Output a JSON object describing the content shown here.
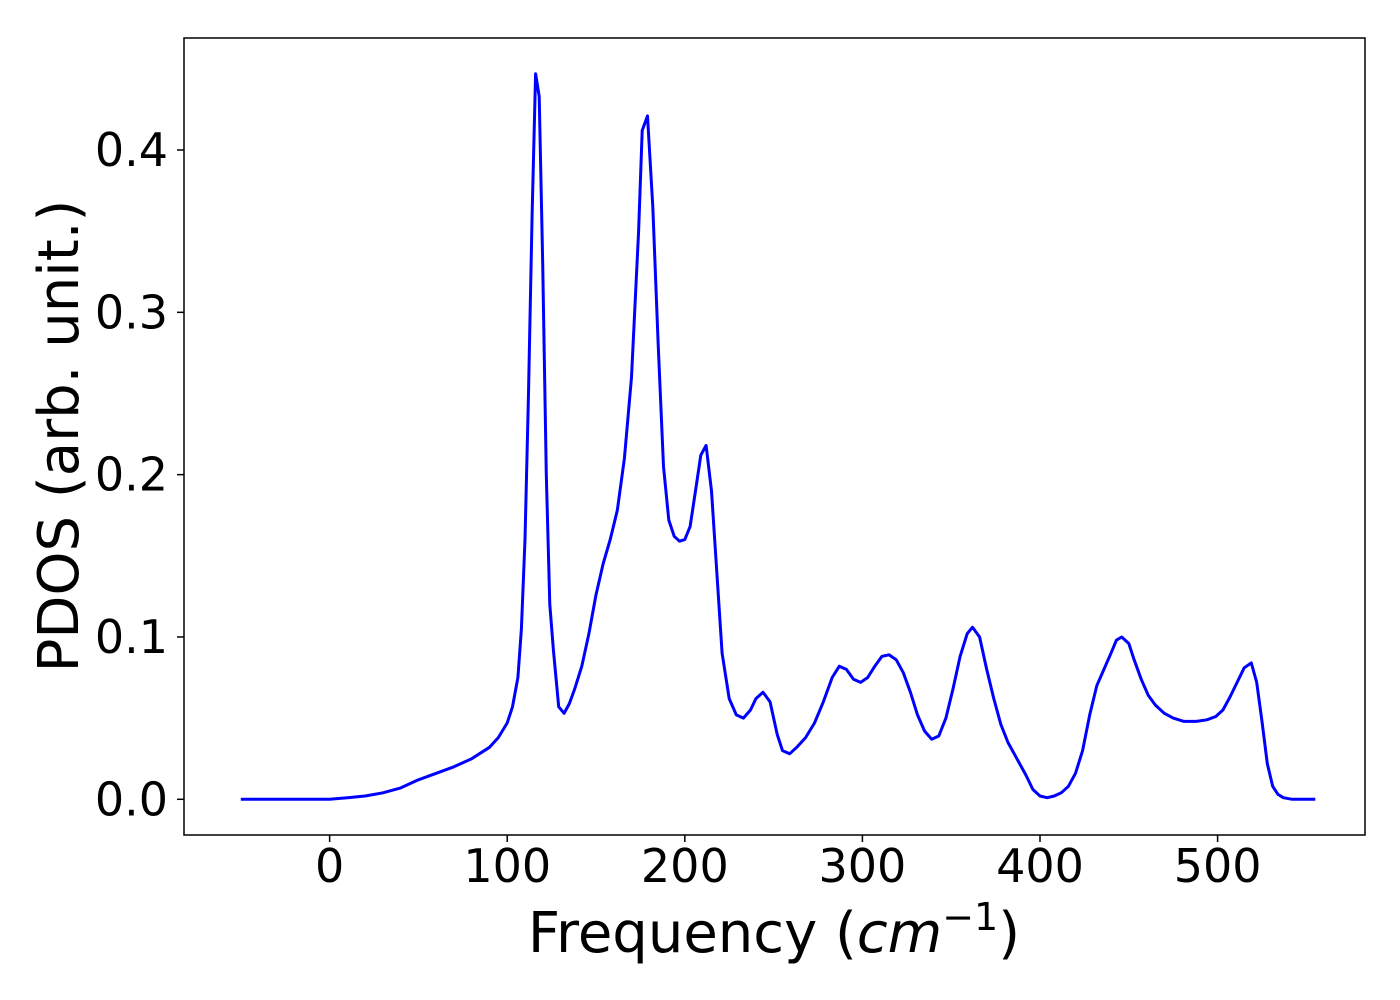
{
  "chart_data": {
    "type": "line",
    "title": "",
    "xlabel": {
      "prefix": "Frequency (",
      "unit_base": "cm",
      "unit_exponent": "−1",
      "suffix": ")"
    },
    "ylabel": "PDOS (arb. unit.)",
    "xlim": [
      -82,
      583
    ],
    "ylim": [
      -0.022,
      0.469
    ],
    "x_ticks": [
      {
        "value": 0,
        "label": "0"
      },
      {
        "value": 100,
        "label": "100"
      },
      {
        "value": 200,
        "label": "200"
      },
      {
        "value": 300,
        "label": "300"
      },
      {
        "value": 400,
        "label": "400"
      },
      {
        "value": 500,
        "label": "500"
      }
    ],
    "y_ticks": [
      {
        "value": 0.0,
        "label": "0.0"
      },
      {
        "value": 0.1,
        "label": "0.1"
      },
      {
        "value": 0.2,
        "label": "0.2"
      },
      {
        "value": 0.3,
        "label": "0.3"
      },
      {
        "value": 0.4,
        "label": "0.4"
      }
    ],
    "grid": false,
    "legend": "none",
    "series": [
      {
        "color": "#0000ff",
        "points": [
          [
            -50,
            0.0
          ],
          [
            0,
            0.0
          ],
          [
            10,
            0.001
          ],
          [
            20,
            0.002
          ],
          [
            30,
            0.004
          ],
          [
            40,
            0.007
          ],
          [
            50,
            0.012
          ],
          [
            60,
            0.016
          ],
          [
            70,
            0.02
          ],
          [
            80,
            0.025
          ],
          [
            90,
            0.032
          ],
          [
            95,
            0.038
          ],
          [
            100,
            0.047
          ],
          [
            103,
            0.057
          ],
          [
            106,
            0.075
          ],
          [
            108,
            0.105
          ],
          [
            110,
            0.16
          ],
          [
            112,
            0.25
          ],
          [
            114,
            0.36
          ],
          [
            116,
            0.447
          ],
          [
            118,
            0.433
          ],
          [
            120,
            0.33
          ],
          [
            122,
            0.2
          ],
          [
            124,
            0.12
          ],
          [
            126,
            0.092
          ],
          [
            129,
            0.057
          ],
          [
            132,
            0.053
          ],
          [
            135,
            0.059
          ],
          [
            138,
            0.068
          ],
          [
            142,
            0.082
          ],
          [
            146,
            0.102
          ],
          [
            150,
            0.126
          ],
          [
            154,
            0.145
          ],
          [
            158,
            0.16
          ],
          [
            162,
            0.178
          ],
          [
            166,
            0.21
          ],
          [
            170,
            0.26
          ],
          [
            174,
            0.35
          ],
          [
            176,
            0.412
          ],
          [
            179,
            0.421
          ],
          [
            182,
            0.365
          ],
          [
            185,
            0.28
          ],
          [
            188,
            0.205
          ],
          [
            191,
            0.172
          ],
          [
            194,
            0.162
          ],
          [
            197,
            0.159
          ],
          [
            200,
            0.16
          ],
          [
            203,
            0.168
          ],
          [
            206,
            0.19
          ],
          [
            209,
            0.212
          ],
          [
            212,
            0.218
          ],
          [
            215,
            0.19
          ],
          [
            218,
            0.14
          ],
          [
            221,
            0.09
          ],
          [
            225,
            0.062
          ],
          [
            229,
            0.052
          ],
          [
            233,
            0.05
          ],
          [
            237,
            0.055
          ],
          [
            240,
            0.062
          ],
          [
            244,
            0.066
          ],
          [
            248,
            0.06
          ],
          [
            252,
            0.04
          ],
          [
            255,
            0.03
          ],
          [
            259,
            0.028
          ],
          [
            263,
            0.032
          ],
          [
            268,
            0.038
          ],
          [
            273,
            0.047
          ],
          [
            278,
            0.06
          ],
          [
            283,
            0.075
          ],
          [
            287,
            0.082
          ],
          [
            291,
            0.08
          ],
          [
            295,
            0.074
          ],
          [
            299,
            0.072
          ],
          [
            303,
            0.075
          ],
          [
            307,
            0.082
          ],
          [
            311,
            0.088
          ],
          [
            315,
            0.089
          ],
          [
            319,
            0.086
          ],
          [
            323,
            0.078
          ],
          [
            327,
            0.066
          ],
          [
            331,
            0.052
          ],
          [
            335,
            0.042
          ],
          [
            339,
            0.037
          ],
          [
            343,
            0.039
          ],
          [
            347,
            0.05
          ],
          [
            351,
            0.068
          ],
          [
            355,
            0.088
          ],
          [
            359,
            0.102
          ],
          [
            362,
            0.106
          ],
          [
            366,
            0.1
          ],
          [
            370,
            0.08
          ],
          [
            374,
            0.062
          ],
          [
            378,
            0.046
          ],
          [
            382,
            0.035
          ],
          [
            387,
            0.025
          ],
          [
            392,
            0.015
          ],
          [
            396,
            0.006
          ],
          [
            400,
            0.002
          ],
          [
            404,
            0.001
          ],
          [
            408,
            0.002
          ],
          [
            412,
            0.004
          ],
          [
            416,
            0.008
          ],
          [
            420,
            0.016
          ],
          [
            424,
            0.03
          ],
          [
            428,
            0.052
          ],
          [
            432,
            0.07
          ],
          [
            436,
            0.08
          ],
          [
            440,
            0.09
          ],
          [
            443,
            0.098
          ],
          [
            446,
            0.1
          ],
          [
            450,
            0.096
          ],
          [
            453,
            0.086
          ],
          [
            457,
            0.074
          ],
          [
            461,
            0.064
          ],
          [
            465,
            0.058
          ],
          [
            470,
            0.053
          ],
          [
            475,
            0.05
          ],
          [
            481,
            0.048
          ],
          [
            488,
            0.048
          ],
          [
            494,
            0.049
          ],
          [
            499,
            0.051
          ],
          [
            503,
            0.055
          ],
          [
            507,
            0.063
          ],
          [
            511,
            0.072
          ],
          [
            515,
            0.081
          ],
          [
            519,
            0.084
          ],
          [
            522,
            0.072
          ],
          [
            525,
            0.048
          ],
          [
            528,
            0.022
          ],
          [
            531,
            0.008
          ],
          [
            534,
            0.003
          ],
          [
            537,
            0.001
          ],
          [
            542,
            0.0
          ],
          [
            555,
            0.0
          ]
        ]
      }
    ]
  }
}
